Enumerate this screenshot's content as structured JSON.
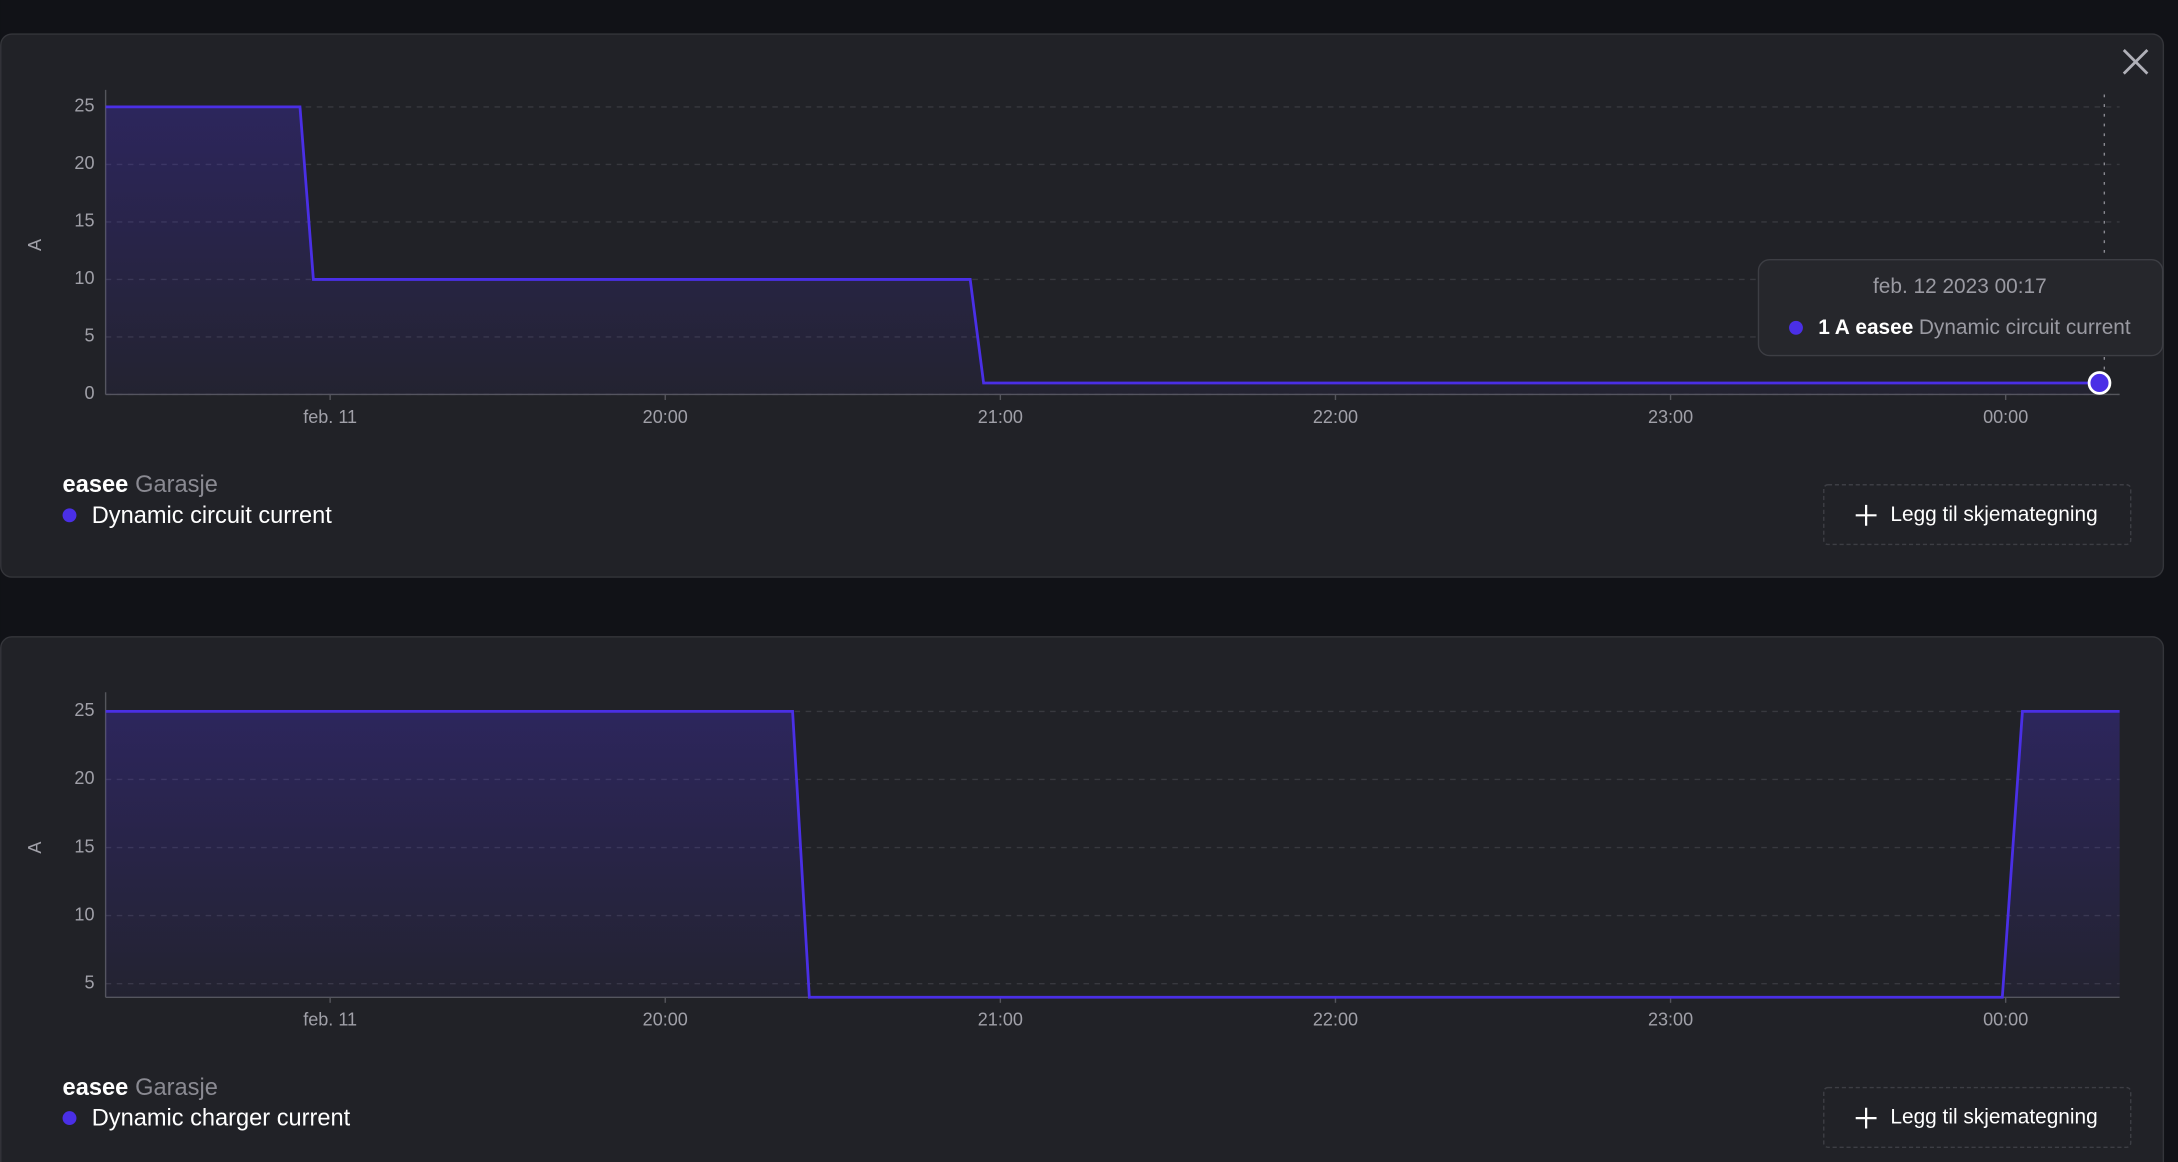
{
  "chart_data": [
    {
      "type": "line",
      "ylabel": "A",
      "x": [
        18.33,
        18.91,
        18.95,
        20.91,
        20.95,
        24.28
      ],
      "series": [
        {
          "name": "Dynamic circuit current",
          "color": "#4a2fe6",
          "values": [
            25,
            25,
            10,
            10,
            1,
            1
          ]
        }
      ],
      "xlim": [
        18.33,
        24.34
      ],
      "ylim": [
        0,
        26
      ],
      "xticks": [
        {
          "value": 19,
          "label": "feb. 11"
        },
        {
          "value": 20,
          "label": "20:00"
        },
        {
          "value": 21,
          "label": "21:00"
        },
        {
          "value": 22,
          "label": "22:00"
        },
        {
          "value": 23,
          "label": "23:00"
        },
        {
          "value": 24,
          "label": "00:00"
        }
      ],
      "yticks": [
        0,
        5,
        10,
        15,
        20,
        25
      ],
      "grid": true
    },
    {
      "type": "line",
      "ylabel": "A",
      "x": [
        18.33,
        20.38,
        20.43,
        23.99,
        24.05,
        24.34
      ],
      "series": [
        {
          "name": "Dynamic charger current",
          "color": "#4a2fe6",
          "values": [
            25,
            25,
            4,
            4,
            25,
            25
          ]
        }
      ],
      "xlim": [
        18.33,
        24.34
      ],
      "ylim": [
        4,
        26
      ],
      "xticks": [
        {
          "value": 19,
          "label": "feb. 11"
        },
        {
          "value": 20,
          "label": "20:00"
        },
        {
          "value": 21,
          "label": "21:00"
        },
        {
          "value": 22,
          "label": "22:00"
        },
        {
          "value": 23,
          "label": "23:00"
        },
        {
          "value": 24,
          "label": "00:00"
        }
      ],
      "yticks": [
        5,
        10,
        15,
        20,
        25
      ],
      "grid": true
    }
  ],
  "panels": [
    {
      "device": "easee",
      "location": "Garasje",
      "button": "Legg til skjemategning"
    },
    {
      "device": "easee",
      "location": "Garasje",
      "button": "Legg til skjemategning"
    }
  ],
  "tooltip": {
    "time": "feb. 12 2023 00:17",
    "value": 1,
    "value_label": "1 A",
    "device": "easee",
    "metric": "Dynamic circuit current"
  }
}
